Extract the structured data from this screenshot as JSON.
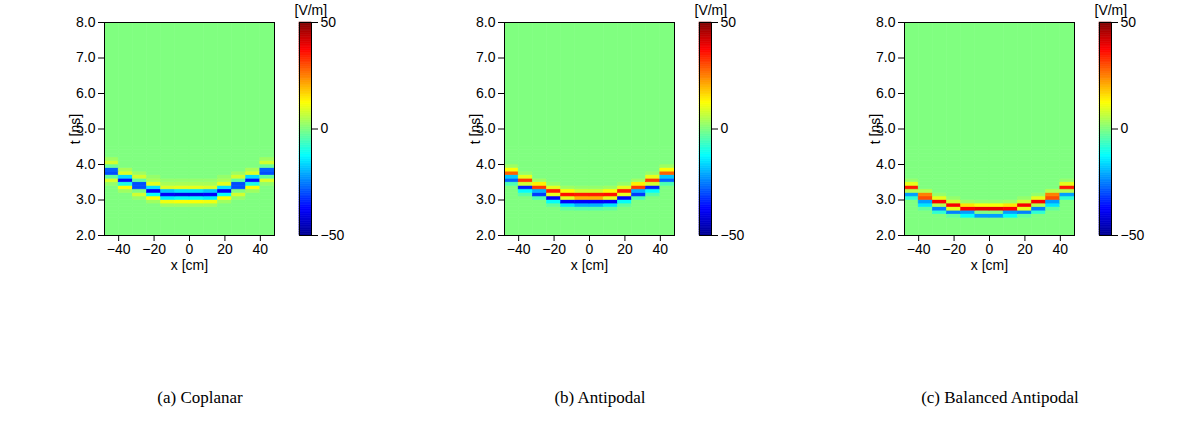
{
  "chart_data": [
    {
      "type": "heatmap",
      "caption": "(a) Coplanar",
      "xlabel": "x [cm]",
      "ylabel": "t [ns]",
      "xlim": [
        -48,
        48
      ],
      "ylim": [
        2,
        8
      ],
      "xticks": [
        -40,
        -20,
        0,
        20,
        40
      ],
      "yticks": [
        2,
        3,
        4,
        5,
        6,
        7,
        8
      ],
      "x_edges": [
        -48,
        -40,
        -32,
        -24,
        -16,
        -8,
        0,
        8,
        16,
        24,
        32,
        40,
        48
      ],
      "t_edges": [
        2,
        2.5,
        2.6,
        2.7,
        2.8,
        2.9,
        3,
        3.1,
        3.2,
        3.3,
        3.4,
        3.5,
        3.6,
        3.7,
        3.8,
        3.9,
        4,
        4.1,
        4.2,
        4.3,
        4.4,
        4.5,
        8
      ],
      "values": [
        [
          0,
          0,
          0,
          0,
          0,
          0,
          0,
          0,
          0,
          0,
          0,
          0
        ],
        [
          0,
          0,
          0,
          0,
          0,
          0,
          0,
          0,
          0,
          0,
          0,
          0
        ],
        [
          0,
          0,
          0,
          0,
          0,
          0,
          0,
          0,
          0,
          0,
          0,
          0
        ],
        [
          0,
          0,
          0,
          0,
          0,
          0,
          0,
          0,
          0,
          0,
          0,
          0
        ],
        [
          0,
          0,
          0,
          0,
          3,
          3,
          3,
          3,
          0,
          0,
          0,
          0
        ],
        [
          0,
          0,
          0,
          3,
          11,
          12,
          12,
          11,
          3,
          0,
          0,
          0
        ],
        [
          0,
          0,
          2,
          12,
          -14,
          -12,
          -12,
          -14,
          12,
          2,
          0,
          0
        ],
        [
          0,
          0,
          8,
          -12,
          -38,
          -40,
          -40,
          -38,
          -12,
          8,
          0,
          0
        ],
        [
          0,
          3,
          0,
          -38,
          -18,
          -15,
          -15,
          -18,
          -38,
          0,
          3,
          0
        ],
        [
          0,
          12,
          -30,
          -15,
          9,
          10,
          10,
          9,
          -15,
          -30,
          12,
          0
        ],
        [
          2,
          -10,
          -30,
          10,
          4,
          4,
          4,
          4,
          10,
          -30,
          -10,
          2
        ],
        [
          9,
          -36,
          -3,
          4,
          2,
          2,
          2,
          2,
          4,
          -3,
          -36,
          9
        ],
        [
          -3,
          -16,
          8,
          2,
          0,
          0,
          0,
          0,
          2,
          8,
          -16,
          -3
        ],
        [
          -30,
          9,
          3,
          0,
          0,
          0,
          0,
          0,
          0,
          3,
          9,
          -30
        ],
        [
          -28,
          4,
          0,
          0,
          0,
          0,
          0,
          0,
          0,
          0,
          4,
          -28
        ],
        [
          -2,
          0,
          0,
          0,
          0,
          0,
          0,
          0,
          0,
          0,
          0,
          -2
        ],
        [
          8,
          0,
          0,
          0,
          0,
          0,
          0,
          0,
          0,
          0,
          0,
          8
        ],
        [
          3,
          0,
          0,
          0,
          0,
          0,
          0,
          0,
          0,
          0,
          0,
          3
        ],
        [
          0,
          0,
          0,
          0,
          0,
          0,
          0,
          0,
          0,
          0,
          0,
          0
        ],
        [
          0,
          0,
          0,
          0,
          0,
          0,
          0,
          0,
          0,
          0,
          0,
          0
        ],
        [
          0,
          0,
          0,
          0,
          0,
          0,
          0,
          0,
          0,
          0,
          0,
          0
        ],
        [
          0,
          0,
          0,
          0,
          0,
          0,
          0,
          0,
          0,
          0,
          0,
          0
        ]
      ],
      "colorbar": {
        "label": "[V/m]",
        "range": [
          -50,
          50
        ],
        "ticks": [
          -50,
          0,
          50
        ]
      }
    },
    {
      "type": "heatmap",
      "caption": "(b) Antipodal",
      "xlabel": "x [cm]",
      "ylabel": "t [ns]",
      "xlim": [
        -48,
        48
      ],
      "ylim": [
        2,
        8
      ],
      "xticks": [
        -40,
        -20,
        0,
        20,
        40
      ],
      "yticks": [
        2,
        3,
        4,
        5,
        6,
        7,
        8
      ],
      "x_edges": [
        -48,
        -40,
        -32,
        -24,
        -16,
        -8,
        0,
        8,
        16,
        24,
        32,
        40,
        48
      ],
      "t_edges": [
        2,
        2.5,
        2.6,
        2.7,
        2.8,
        2.9,
        3,
        3.1,
        3.2,
        3.3,
        3.4,
        3.5,
        3.6,
        3.7,
        3.8,
        3.9,
        4,
        4.1,
        4.2,
        4.3,
        4.4,
        4.5,
        8
      ],
      "values": [
        [
          0,
          0,
          0,
          0,
          0,
          0,
          0,
          0,
          0,
          0,
          0,
          0
        ],
        [
          0,
          0,
          0,
          0,
          0,
          0,
          0,
          0,
          0,
          0,
          0,
          0
        ],
        [
          0,
          0,
          0,
          0,
          0,
          0,
          0,
          0,
          0,
          0,
          0,
          0
        ],
        [
          0,
          0,
          0,
          0,
          -3,
          -4,
          -4,
          -3,
          0,
          0,
          0,
          0
        ],
        [
          0,
          0,
          0,
          -3,
          -15,
          -20,
          -20,
          -15,
          -3,
          0,
          0,
          0
        ],
        [
          0,
          0,
          0,
          -12,
          -38,
          -38,
          -38,
          -38,
          -12,
          0,
          0,
          0
        ],
        [
          0,
          0,
          -5,
          -38,
          10,
          20,
          20,
          10,
          -38,
          -5,
          0,
          0
        ],
        [
          0,
          -4,
          -32,
          10,
          36,
          35,
          35,
          36,
          10,
          -32,
          -4,
          0
        ],
        [
          0,
          -12,
          -20,
          35,
          12,
          8,
          8,
          12,
          35,
          -20,
          -12,
          0
        ],
        [
          0,
          -35,
          32,
          10,
          3,
          2,
          2,
          3,
          10,
          32,
          -35,
          0
        ],
        [
          -5,
          8,
          14,
          2,
          0,
          0,
          0,
          0,
          2,
          14,
          8,
          -5
        ],
        [
          -28,
          32,
          3,
          0,
          0,
          0,
          0,
          0,
          0,
          3,
          32,
          -28
        ],
        [
          -18,
          10,
          0,
          0,
          0,
          0,
          0,
          0,
          0,
          0,
          10,
          -18
        ],
        [
          28,
          2,
          0,
          0,
          0,
          0,
          0,
          0,
          0,
          0,
          2,
          28
        ],
        [
          12,
          0,
          0,
          0,
          0,
          0,
          0,
          0,
          0,
          0,
          0,
          12
        ],
        [
          3,
          0,
          0,
          0,
          0,
          0,
          0,
          0,
          0,
          0,
          0,
          3
        ],
        [
          0,
          0,
          0,
          0,
          0,
          0,
          0,
          0,
          0,
          0,
          0,
          0
        ],
        [
          0,
          0,
          0,
          0,
          0,
          0,
          0,
          0,
          0,
          0,
          0,
          0
        ],
        [
          0,
          0,
          0,
          0,
          0,
          0,
          0,
          0,
          0,
          0,
          0,
          0
        ],
        [
          0,
          0,
          0,
          0,
          0,
          0,
          0,
          0,
          0,
          0,
          0,
          0
        ],
        [
          0,
          0,
          0,
          0,
          0,
          0,
          0,
          0,
          0,
          0,
          0,
          0
        ],
        [
          0,
          0,
          0,
          0,
          0,
          0,
          0,
          0,
          0,
          0,
          0,
          0
        ]
      ],
      "colorbar": {
        "label": "[V/m]",
        "range": [
          -50,
          50
        ],
        "ticks": [
          -50,
          0,
          50
        ]
      }
    },
    {
      "type": "heatmap",
      "caption": "(c) Balanced Antipodal",
      "xlabel": "x [cm]",
      "ylabel": "t [ns]",
      "xlim": [
        -48,
        48
      ],
      "ylim": [
        2,
        8
      ],
      "xticks": [
        -40,
        -20,
        0,
        20,
        40
      ],
      "yticks": [
        2,
        3,
        4,
        5,
        6,
        7,
        8
      ],
      "x_edges": [
        -48,
        -40,
        -32,
        -24,
        -16,
        -8,
        0,
        8,
        16,
        24,
        32,
        40,
        48
      ],
      "t_edges": [
        2,
        2.5,
        2.6,
        2.7,
        2.8,
        2.9,
        3,
        3.1,
        3.2,
        3.3,
        3.4,
        3.5,
        3.6,
        3.7,
        3.8,
        3.9,
        4,
        4.1,
        4.2,
        4.3,
        4.4,
        4.5,
        8
      ],
      "values": [
        [
          0,
          0,
          0,
          0,
          0,
          0,
          0,
          0,
          0,
          0,
          0,
          0
        ],
        [
          0,
          0,
          0,
          -3,
          -12,
          -22,
          -22,
          -12,
          -3,
          0,
          0,
          0
        ],
        [
          0,
          0,
          -8,
          -25,
          -22,
          0,
          0,
          -22,
          -25,
          -8,
          0,
          0
        ],
        [
          0,
          -3,
          -25,
          10,
          38,
          40,
          40,
          38,
          10,
          -25,
          -3,
          0
        ],
        [
          0,
          -15,
          5,
          38,
          15,
          12,
          12,
          15,
          38,
          5,
          -15,
          0
        ],
        [
          0,
          -22,
          38,
          8,
          3,
          2,
          2,
          3,
          8,
          38,
          -22,
          0
        ],
        [
          -8,
          30,
          10,
          2,
          0,
          0,
          0,
          0,
          2,
          10,
          30,
          -8
        ],
        [
          -22,
          25,
          2,
          0,
          0,
          0,
          0,
          0,
          0,
          2,
          25,
          -22
        ],
        [
          5,
          5,
          0,
          0,
          0,
          0,
          0,
          0,
          0,
          0,
          5,
          5
        ],
        [
          35,
          0,
          0,
          0,
          0,
          0,
          0,
          0,
          0,
          0,
          0,
          35
        ],
        [
          10,
          0,
          0,
          0,
          0,
          0,
          0,
          0,
          0,
          0,
          0,
          10
        ],
        [
          2,
          0,
          0,
          0,
          0,
          0,
          0,
          0,
          0,
          0,
          0,
          2
        ],
        [
          0,
          0,
          0,
          0,
          0,
          0,
          0,
          0,
          0,
          0,
          0,
          0
        ],
        [
          0,
          0,
          0,
          0,
          0,
          0,
          0,
          0,
          0,
          0,
          0,
          0
        ],
        [
          0,
          0,
          0,
          0,
          0,
          0,
          0,
          0,
          0,
          0,
          0,
          0
        ],
        [
          0,
          0,
          0,
          0,
          0,
          0,
          0,
          0,
          0,
          0,
          0,
          0
        ],
        [
          0,
          0,
          0,
          0,
          0,
          0,
          0,
          0,
          0,
          0,
          0,
          0
        ],
        [
          0,
          0,
          0,
          0,
          0,
          0,
          0,
          0,
          0,
          0,
          0,
          0
        ],
        [
          0,
          0,
          0,
          0,
          0,
          0,
          0,
          0,
          0,
          0,
          0,
          0
        ],
        [
          0,
          0,
          0,
          0,
          0,
          0,
          0,
          0,
          0,
          0,
          0,
          0
        ],
        [
          0,
          0,
          0,
          0,
          0,
          0,
          0,
          0,
          0,
          0,
          0,
          0
        ],
        [
          0,
          0,
          0,
          0,
          0,
          0,
          0,
          0,
          0,
          0,
          0,
          0
        ]
      ],
      "colorbar": {
        "label": "[V/m]",
        "range": [
          -50,
          50
        ],
        "ticks": [
          -50,
          0,
          50
        ]
      }
    }
  ]
}
